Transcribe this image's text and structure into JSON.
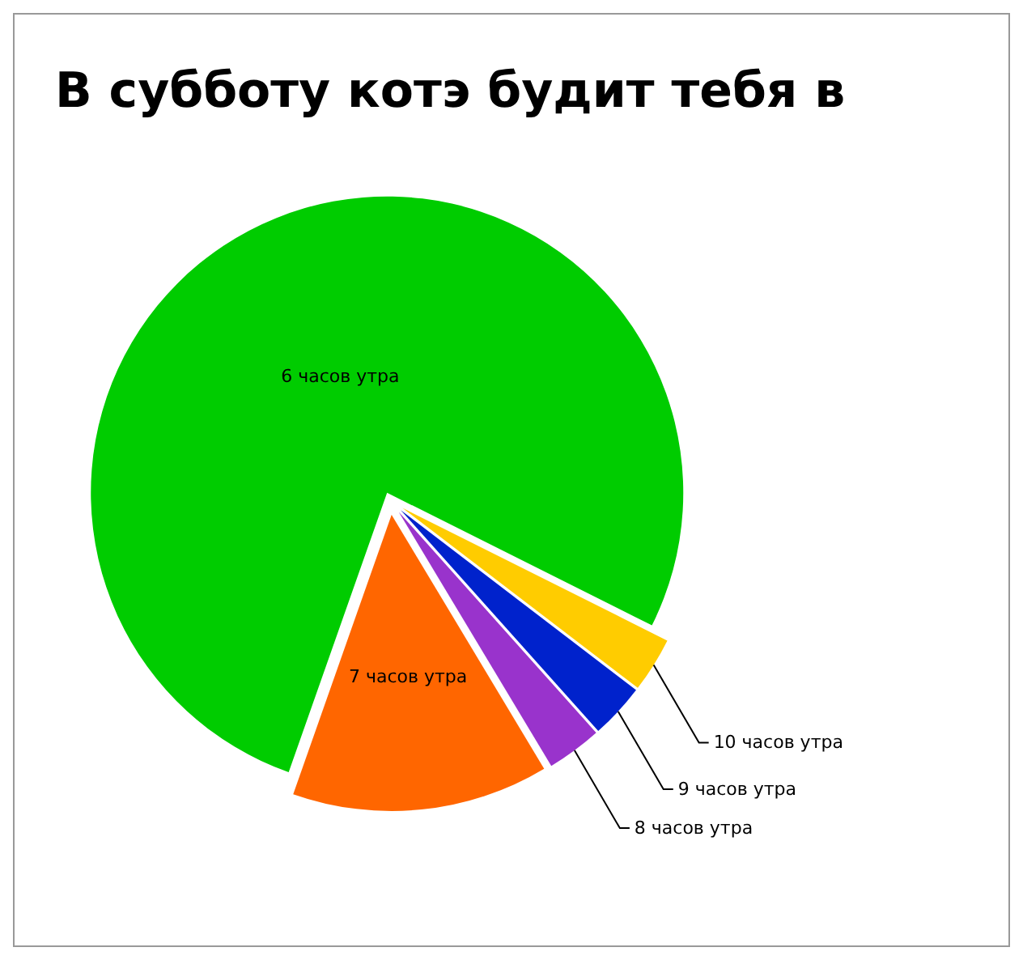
{
  "chart_data": {
    "type": "pie",
    "title": "В субботу котэ будит тебя в",
    "categories": [
      "6 часов утра",
      "7 часов утра",
      "8 часов утра",
      "9 часов утра",
      "10 часов утра"
    ],
    "values": [
      77,
      14,
      3,
      3,
      3
    ],
    "colors": [
      "#00cc00",
      "#ff6600",
      "#9933cc",
      "#0022cc",
      "#ffcc00"
    ],
    "legend": false
  }
}
